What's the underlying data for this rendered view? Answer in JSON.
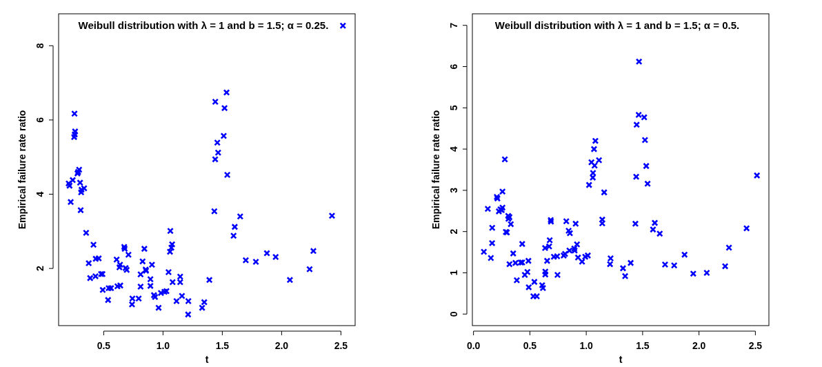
{
  "chart_data": [
    {
      "type": "scatter",
      "title": "Weibull distribution with λ = 1 and b = 1.5; α = 0.25.",
      "xlabel": "t",
      "ylabel": "Empirical failure rate ratio",
      "marker": "cross",
      "grid": false,
      "xlim": [
        0.12,
        2.62
      ],
      "ylim": [
        0.46,
        8.86
      ],
      "xticks": [
        0.5,
        {
          "value": 1,
          "label": "1.0"
        },
        1.5,
        {
          "value": 2,
          "label": "2.0"
        },
        2.5
      ],
      "yticks": [
        2,
        4,
        6,
        8
      ],
      "series": [
        {
          "color": "#0000ff",
          "x": [
            0.205,
            0.212,
            0.239,
            0.222,
            0.254,
            0.259,
            0.256,
            0.251,
            0.279,
            0.293,
            0.285,
            0.301,
            0.31,
            0.313,
            0.335,
            0.306,
            0.352,
            0.414,
            0.374,
            0.386,
            0.433,
            0.458,
            0.431,
            0.478,
            0.49,
            0.492,
            0.537,
            0.542,
            0.562,
            0.609,
            0.638,
            0.633,
            0.616,
            0.64,
            0.673,
            0.677,
            0.685,
            0.694,
            0.709,
            0.742,
            0.739,
            0.795,
            0.828,
            0.811,
            0.811,
            0.843,
            0.854,
            0.857,
            0.907,
            0.894,
            0.894,
            0.924,
            0.933,
            0.963,
            0.983,
            1.012,
            1.029,
            1.047,
            1.062,
            1.059,
            1.071,
            1.077,
            1.081,
            1.114,
            1.145,
            1.145,
            1.16,
            1.214,
            1.212,
            1.33,
            1.348,
            1.391,
            1.433,
            1.441,
            1.44,
            1.458,
            1.465,
            1.536,
            1.519,
            1.512,
            1.542,
            1.651,
            1.605,
            1.595,
            1.698,
            1.783,
            1.876,
            1.95,
            2.07,
            2.236,
            2.268,
            2.425,
            2.517
          ],
          "values": [
            4.29,
            4.23,
            4.38,
            3.79,
            6.17,
            5.69,
            5.61,
            5.54,
            4.56,
            4.66,
            4.6,
            4.31,
            4.05,
            4.12,
            4.16,
            3.57,
            2.96,
            2.64,
            2.14,
            1.74,
            2.26,
            2.27,
            1.79,
            1.85,
            1.85,
            1.42,
            1.15,
            1.47,
            1.47,
            2.24,
            2.1,
            2.03,
            1.52,
            1.54,
            2.58,
            2.53,
            2.01,
            1.96,
            2.37,
            1.19,
            1.03,
            1.19,
            2.19,
            1.84,
            1.51,
            2.53,
            1.97,
            1.94,
            2.1,
            1.71,
            1.53,
            1.28,
            1.23,
            0.94,
            1.34,
            1.37,
            1.39,
            1.9,
            3.01,
            2.45,
            2.56,
            2.65,
            1.63,
            1.12,
            1.78,
            1.63,
            1.26,
            1.12,
            0.76,
            0.94,
            1.09,
            1.69,
            3.54,
            6.49,
            4.94,
            5.39,
            5.12,
            6.74,
            6.32,
            5.57,
            4.52,
            3.4,
            3.12,
            2.88,
            2.22,
            2.18,
            2.41,
            2.31,
            1.69,
            1.98,
            2.47,
            3.42,
            8.54
          ]
        }
      ]
    },
    {
      "type": "scatter",
      "title": "Weibull distribution with λ = 1 and b = 1.5; α = 0.5.",
      "xlabel": "t",
      "ylabel": "Empirical failure rate ratio",
      "marker": "cross",
      "grid": false,
      "xlim": [
        -0.01,
        2.62
      ],
      "ylim": [
        -0.28,
        7.28
      ],
      "xticks": [
        {
          "value": 0,
          "label": "0.0"
        },
        0.5,
        {
          "value": 1,
          "label": "1.0"
        },
        1.5,
        {
          "value": 2,
          "label": "2.0"
        },
        2.5
      ],
      "yticks": [
        0,
        1,
        2,
        3,
        4,
        5,
        6,
        7
      ],
      "series": [
        {
          "color": "#0000ff",
          "x": [
            0.092,
            0.127,
            0.154,
            0.165,
            0.166,
            0.207,
            0.212,
            0.225,
            0.239,
            0.251,
            0.257,
            0.257,
            0.278,
            0.287,
            0.296,
            0.308,
            0.31,
            0.319,
            0.331,
            0.319,
            0.352,
            0.372,
            0.384,
            0.419,
            0.432,
            0.432,
            0.455,
            0.478,
            0.487,
            0.49,
            0.54,
            0.531,
            0.561,
            0.609,
            0.616,
            0.635,
            0.637,
            0.637,
            0.653,
            0.671,
            0.676,
            0.685,
            0.687,
            0.713,
            0.742,
            0.745,
            0.8,
            0.812,
            0.823,
            0.844,
            0.855,
            0.851,
            0.894,
            0.897,
            0.906,
            0.918,
            0.927,
            0.963,
            0.991,
            1.014,
            1.025,
            1.046,
            1.06,
            1.058,
            1.069,
            1.081,
            1.074,
            1.113,
            1.159,
            1.142,
            1.142,
            1.216,
            1.211,
            1.326,
            1.345,
            1.468,
            1.465,
            1.514,
            1.447,
            1.521,
            1.532,
            1.443,
            1.544,
            1.436,
            1.608,
            1.592,
            1.652,
            1.394,
            1.699,
            1.78,
            1.872,
            1.949,
            2.069,
            2.232,
            2.266,
            2.422,
            2.514
          ],
          "values": [
            1.51,
            2.55,
            1.36,
            1.72,
            2.09,
            2.84,
            2.8,
            2.49,
            2.54,
            2.52,
            2.58,
            2.97,
            3.75,
            1.99,
            1.98,
            2.38,
            2.31,
            2.35,
            2.18,
            1.21,
            1.47,
            1.24,
            0.82,
            1.25,
            1.25,
            1.7,
            0.95,
            1.02,
            1.29,
            0.65,
            0.78,
            0.43,
            0.43,
            0.7,
            0.63,
            1.6,
            0.96,
            1.03,
            1.29,
            1.64,
            1.79,
            2.28,
            2.24,
            1.39,
            1.4,
            0.95,
            1.42,
            1.46,
            2.25,
            2.02,
            1.96,
            1.54,
            1.59,
            1.54,
            2.19,
            1.69,
            1.37,
            1.27,
            1.39,
            1.42,
            3.13,
            3.68,
            3.42,
            3.31,
            4.0,
            4.2,
            3.6,
            3.73,
            2.95,
            2.29,
            2.2,
            1.35,
            1.21,
            1.11,
            0.92,
            6.12,
            4.83,
            4.77,
            4.59,
            4.22,
            3.59,
            3.33,
            3.16,
            2.19,
            2.21,
            2.05,
            1.95,
            1.24,
            1.2,
            1.18,
            1.44,
            0.98,
            1.0,
            1.16,
            1.61,
            2.08,
            3.36
          ]
        }
      ]
    }
  ]
}
